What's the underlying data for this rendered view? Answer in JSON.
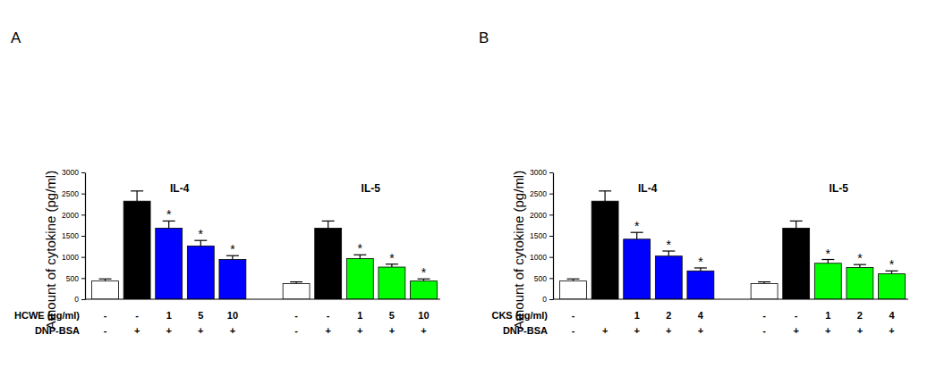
{
  "chart_data": [
    {
      "type": "bar",
      "title": "A",
      "ylabel": "Amount of cytokine (pg/ml)",
      "ylim": [
        0,
        3000
      ],
      "yticks": [
        0,
        500,
        1000,
        1500,
        2000,
        2500,
        3000
      ],
      "row_labels": [
        "HCWE (µg/ml)",
        "DNP-BSA"
      ],
      "groups": [
        {
          "name": "IL-4",
          "values": [
            430,
            2320,
            1680,
            1260,
            940
          ],
          "errors": [
            50,
            240,
            170,
            130,
            90
          ],
          "colors": [
            "#ffffff",
            "#000000",
            "#0000ff",
            "#0000ff",
            "#0000ff"
          ],
          "annotations": [
            null,
            null,
            "*",
            "*",
            "*"
          ],
          "rows": [
            [
              "-",
              "-",
              "1",
              "5",
              "10"
            ],
            [
              "-",
              "+",
              "+",
              "+",
              "+"
            ]
          ]
        },
        {
          "name": "IL-5",
          "values": [
            370,
            1680,
            960,
            760,
            430
          ],
          "errors": [
            40,
            170,
            90,
            70,
            50
          ],
          "colors": [
            "#ffffff",
            "#000000",
            "#00ff00",
            "#00ff00",
            "#00ff00"
          ],
          "annotations": [
            null,
            null,
            "*",
            "*",
            "*"
          ],
          "rows": [
            [
              "-",
              "-",
              "1",
              "5",
              "10"
            ],
            [
              "-",
              "+",
              "+",
              "+",
              "+"
            ]
          ]
        }
      ]
    },
    {
      "type": "bar",
      "title": "B",
      "ylabel": "Amount of cytokine (pg/ml)",
      "ylim": [
        0,
        3000
      ],
      "yticks": [
        0,
        500,
        1000,
        1500,
        2000,
        2500,
        3000
      ],
      "row_labels": [
        "CKS (µg/ml)",
        "DNP-BSA"
      ],
      "groups": [
        {
          "name": "IL-4",
          "values": [
            430,
            2320,
            1420,
            1020,
            670
          ],
          "errors": [
            50,
            240,
            160,
            120,
            70
          ],
          "colors": [
            "#ffffff",
            "#000000",
            "#0000ff",
            "#0000ff",
            "#0000ff"
          ],
          "annotations": [
            null,
            null,
            "*",
            "*",
            "*"
          ],
          "rows": [
            [
              "-",
              null,
              "1",
              "2",
              "4"
            ],
            [
              "-",
              "+",
              "+",
              "+",
              "+"
            ]
          ]
        },
        {
          "name": "IL-5",
          "values": [
            370,
            1680,
            850,
            750,
            600
          ],
          "errors": [
            40,
            170,
            90,
            70,
            70
          ],
          "colors": [
            "#ffffff",
            "#000000",
            "#00ff00",
            "#00ff00",
            "#00ff00"
          ],
          "annotations": [
            null,
            null,
            "*",
            "*",
            "*"
          ],
          "rows": [
            [
              "-",
              "-",
              "1",
              "2",
              "4"
            ],
            [
              "-",
              "+",
              "+",
              "+",
              "+"
            ]
          ]
        }
      ]
    }
  ]
}
